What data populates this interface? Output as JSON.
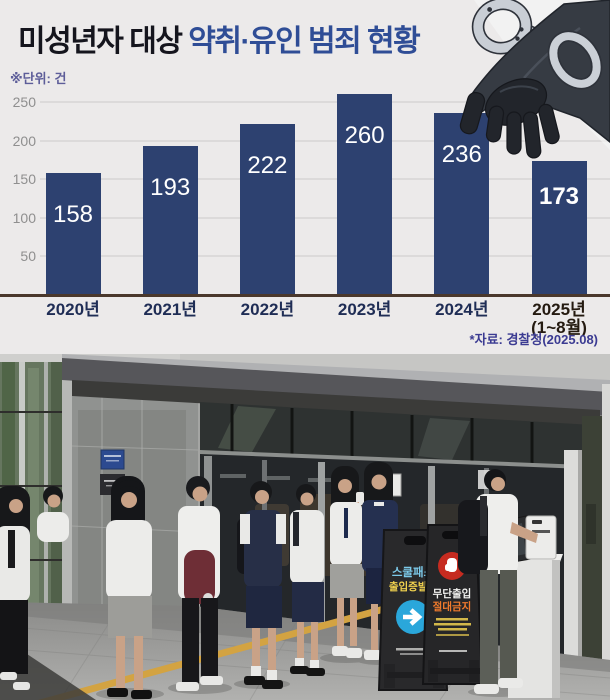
{
  "title": {
    "prefix": "미성년자 대상 ",
    "highlight": "약취·유인 범죄 현황"
  },
  "unit_label": "※단위: 건",
  "source": "*자료: 경찰청(2025.08)",
  "icons": {
    "top_right": "handcuffed-hand-illustration"
  },
  "colors": {
    "background": "#eceaea",
    "bar": "#2d4170",
    "title_dark": "#15151d",
    "title_highlight": "#2f4d96",
    "axis_line": "#4a382c",
    "xlabel": "#1f2d55",
    "source_text": "#3b3b92"
  },
  "chart_data": {
    "type": "bar",
    "title": "미성년자 대상 약취·유인 범죄 현황",
    "categories": [
      "2020년",
      "2021년",
      "2022년",
      "2023년",
      "2024년",
      "2025년"
    ],
    "last_category_note": "(1~8월)",
    "values": [
      158,
      193,
      222,
      260,
      236,
      173
    ],
    "unit": "건",
    "ylabel": "건",
    "ylim": [
      0,
      275
    ],
    "yticks": [
      50,
      100,
      150,
      200,
      250
    ],
    "grid": true,
    "legend": "none",
    "highlight_last_bar": true,
    "source": "*자료: 경찰청(2025.08)"
  },
  "photo": {
    "signs": {
      "school_pass": {
        "line1": "스쿨패스",
        "line2": "출입증발급",
        "arrow": "➜"
      },
      "no_entry": {
        "line1": "무단출입",
        "line2": "절대금지"
      }
    }
  }
}
